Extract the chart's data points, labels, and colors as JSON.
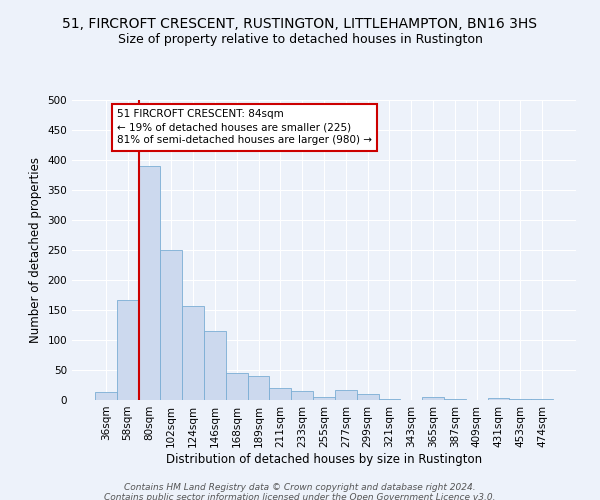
{
  "title": "51, FIRCROFT CRESCENT, RUSTINGTON, LITTLEHAMPTON, BN16 3HS",
  "subtitle": "Size of property relative to detached houses in Rustington",
  "xlabel": "Distribution of detached houses by size in Rustington",
  "ylabel": "Number of detached properties",
  "bar_color": "#ccd9ee",
  "bar_edge_color": "#7aadd4",
  "categories": [
    "36sqm",
    "58sqm",
    "80sqm",
    "102sqm",
    "124sqm",
    "146sqm",
    "168sqm",
    "189sqm",
    "211sqm",
    "233sqm",
    "255sqm",
    "277sqm",
    "299sqm",
    "321sqm",
    "343sqm",
    "365sqm",
    "387sqm",
    "409sqm",
    "431sqm",
    "453sqm",
    "474sqm"
  ],
  "values": [
    13,
    167,
    390,
    250,
    157,
    115,
    45,
    40,
    20,
    15,
    5,
    17,
    10,
    2,
    0,
    5,
    2,
    0,
    3,
    1,
    1
  ],
  "ylim": [
    0,
    500
  ],
  "yticks": [
    0,
    50,
    100,
    150,
    200,
    250,
    300,
    350,
    400,
    450,
    500
  ],
  "vline_color": "#cc0000",
  "vline_index": 2,
  "annotation_text": "51 FIRCROFT CRESCENT: 84sqm\n← 19% of detached houses are smaller (225)\n81% of semi-detached houses are larger (980) →",
  "annotation_box_color": "#ffffff",
  "annotation_box_edge": "#cc0000",
  "footer1": "Contains HM Land Registry data © Crown copyright and database right 2024.",
  "footer2": "Contains public sector information licensed under the Open Government Licence v3.0.",
  "bg_color": "#edf2fa",
  "grid_color": "#ffffff",
  "title_fontsize": 10,
  "subtitle_fontsize": 9,
  "label_fontsize": 8.5,
  "tick_fontsize": 7.5,
  "footer_fontsize": 6.5,
  "annot_fontsize": 7.5
}
